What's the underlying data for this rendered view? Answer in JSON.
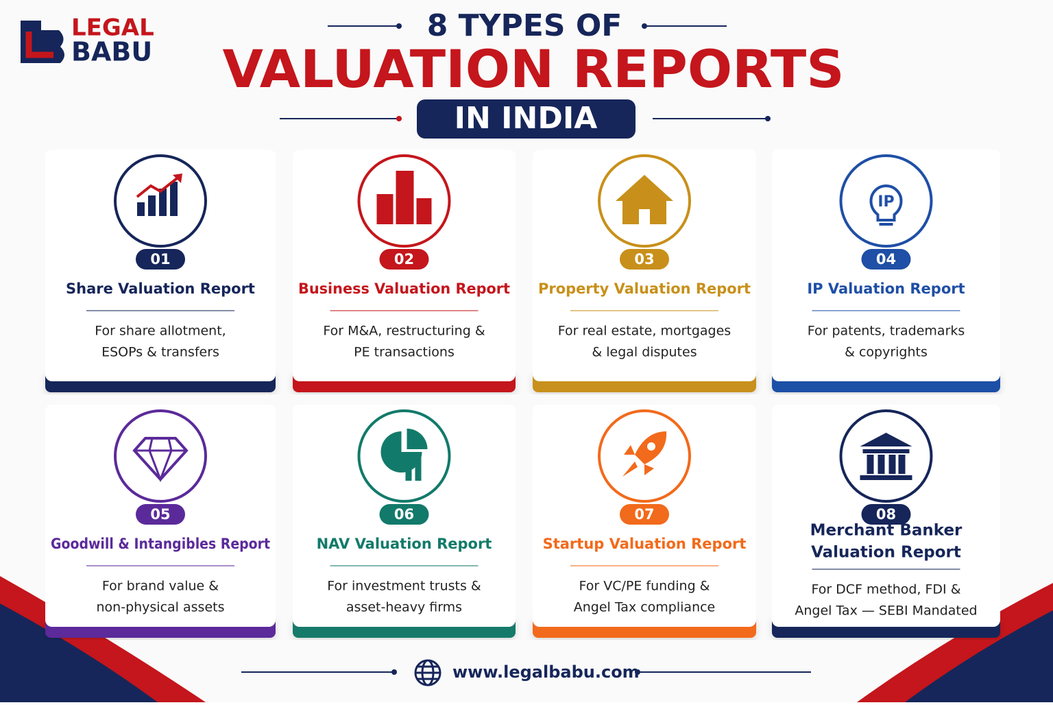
{
  "logo": {
    "line1": "LEGAL",
    "line2": "BABU"
  },
  "header": {
    "kicker": "8 TYPES OF",
    "title": "VALUATION REPORTS",
    "badge": "IN INDIA"
  },
  "cards": [
    {
      "number": "01",
      "title_lines": [
        "Share Valuation Report"
      ],
      "description_lines": [
        "For share allotment,",
        "ESOPs & transfers"
      ],
      "color": "#16265a"
    },
    {
      "number": "02",
      "title_lines": [
        "Business Valuation Report"
      ],
      "description_lines": [
        "For M&A, restructuring &",
        "PE transactions"
      ],
      "color": "#c4161c"
    },
    {
      "number": "03",
      "title_lines": [
        "Property Valuation Report"
      ],
      "description_lines": [
        "For real estate, mortgages",
        "& legal disputes"
      ],
      "color": "#c8901a"
    },
    {
      "number": "04",
      "title_lines": [
        "IP Valuation Report"
      ],
      "description_lines": [
        "For patents, trademarks",
        "& copyrights"
      ],
      "color": "#1f4fa6"
    },
    {
      "number": "05",
      "title_lines": [
        "Goodwill & Intangibles Report"
      ],
      "description_lines": [
        "For brand value &",
        "non-physical assets"
      ],
      "color": "#5b2a9a"
    },
    {
      "number": "06",
      "title_lines": [
        "NAV Valuation Report"
      ],
      "description_lines": [
        "For investment trusts &",
        "asset-heavy firms"
      ],
      "color": "#127a6a"
    },
    {
      "number": "07",
      "title_lines": [
        "Startup Valuation Report"
      ],
      "description_lines": [
        "For VC/PE funding &",
        "Angel Tax compliance"
      ],
      "color": "#f26a1b"
    },
    {
      "number": "08",
      "title_lines": [
        "Merchant Banker",
        "Valuation Report"
      ],
      "description_lines": [
        "For DCF method, FDI &",
        "Angel Tax — SEBI Mandated"
      ],
      "color": "#16265a"
    }
  ],
  "footer": {
    "url": "www.legalbabu.com"
  }
}
